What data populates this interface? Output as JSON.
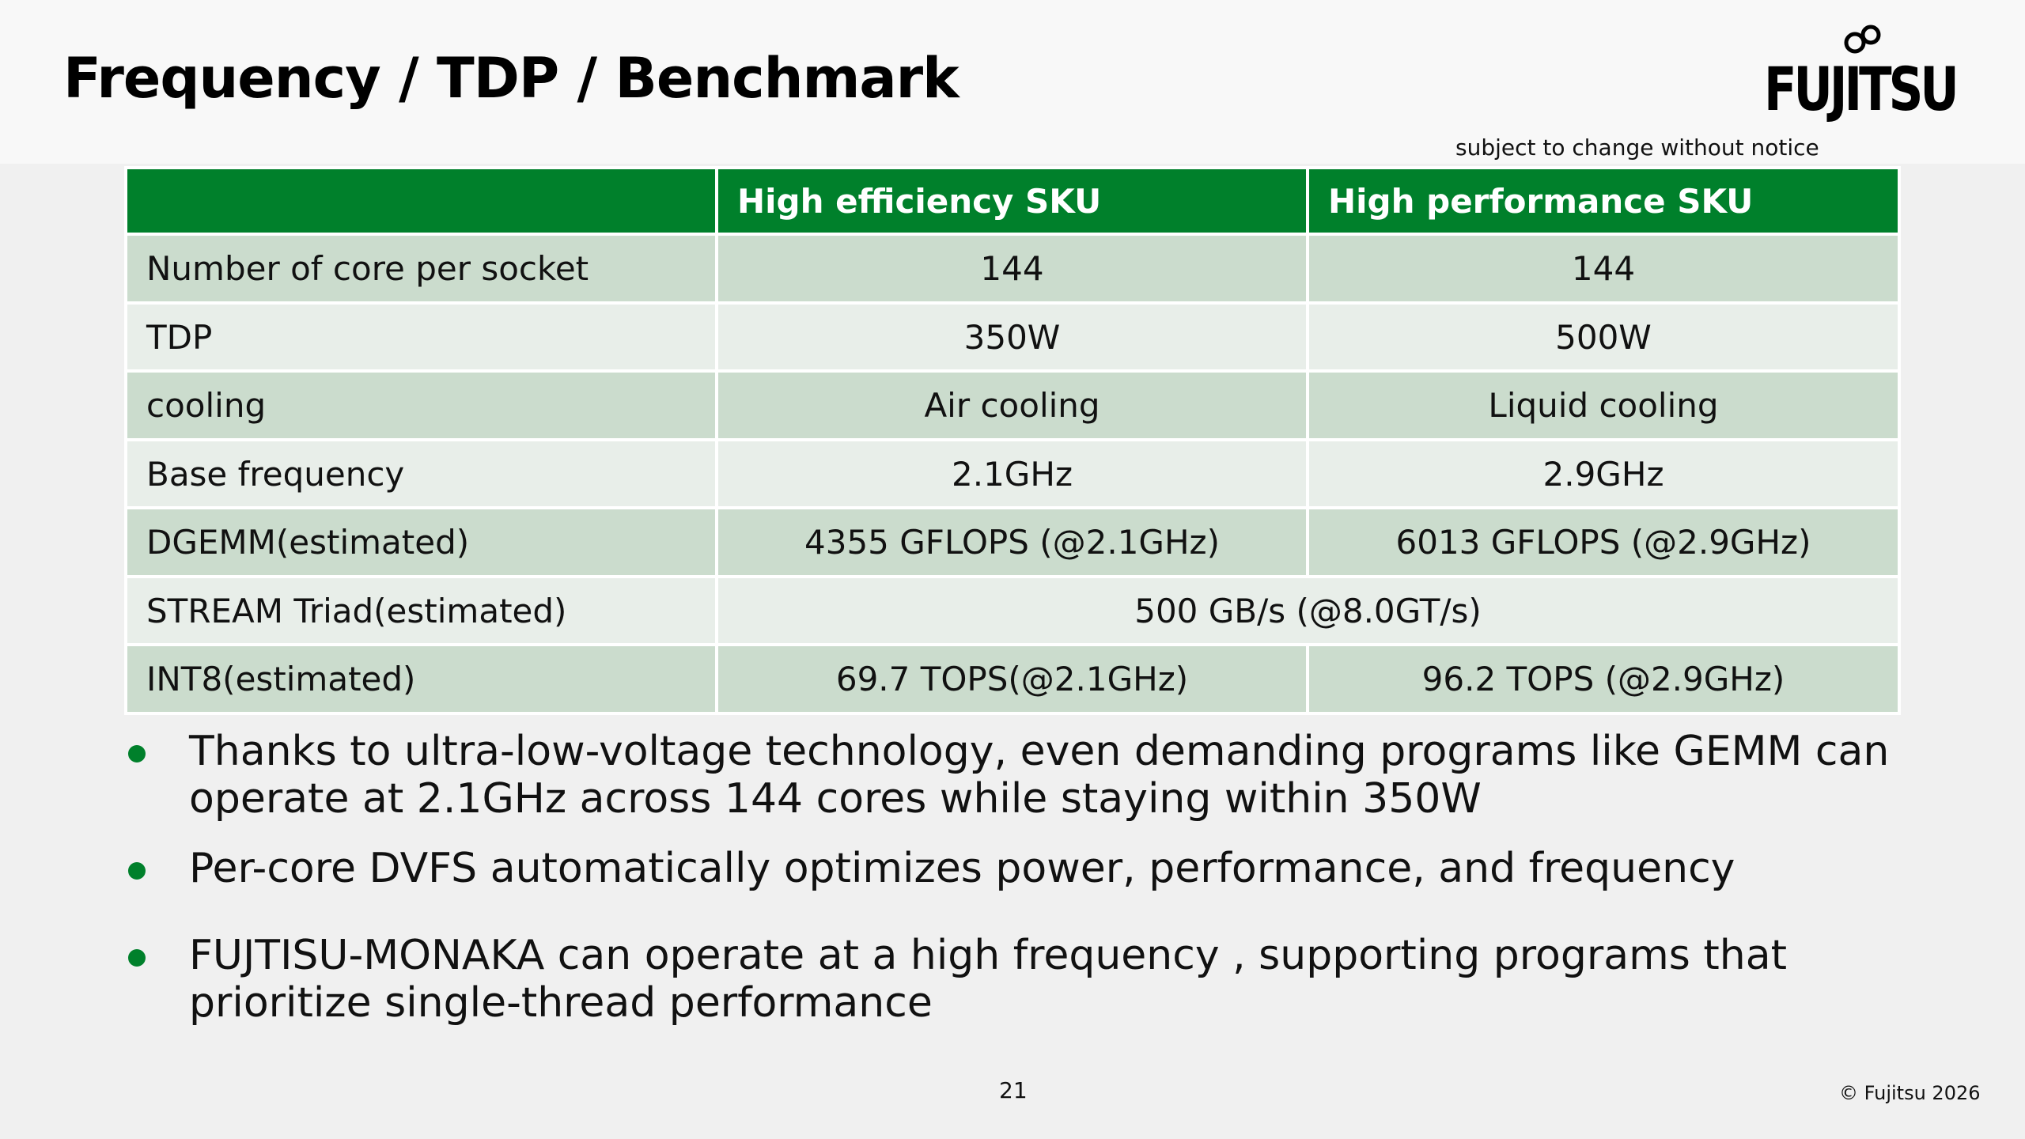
{
  "slide": {
    "title": "Frequency / TDP / Benchmark",
    "logo_text": "FUJITSU",
    "notice": "subject to change without notice",
    "page_number": "21",
    "copyright": "© Fujitsu 2026"
  },
  "table": {
    "headers": [
      "",
      "High efficiency SKU",
      "High performance SKU"
    ],
    "rows": [
      {
        "label": "Number of core per socket",
        "he": "144",
        "hp": "144"
      },
      {
        "label": "TDP",
        "he": "350W",
        "hp": "500W"
      },
      {
        "label": "cooling",
        "he": "Air cooling",
        "hp": "Liquid cooling"
      },
      {
        "label": "Base frequency",
        "he": "2.1GHz",
        "hp": "2.9GHz"
      },
      {
        "label": "DGEMM(estimated)",
        "he": "4355  GFLOPS (@2.1GHz)",
        "hp": "6013 GFLOPS (@2.9GHz)"
      },
      {
        "label": "STREAM Triad(estimated)",
        "merged": "500 GB/s (@8.0GT/s)"
      },
      {
        "label": "INT8(estimated)",
        "he": "69.7 TOPS(@2.1GHz)",
        "hp": "96.2 TOPS (@2.9GHz)"
      }
    ]
  },
  "bullets": [
    "Thanks to ultra-low-voltage technology, even demanding programs like GEMM can operate at 2.1GHz across 144 cores while staying within 350W",
    "Per-core DVFS automatically optimizes power, performance, and frequency",
    "FUJTISU-MONAKA can operate at a high frequency , supporting programs that prioritize single-thread performance"
  ],
  "colors": {
    "header_green": "#00802b",
    "row_dark": "#cbdccd",
    "row_light": "#e8eee9",
    "bullet": "#00802b"
  }
}
